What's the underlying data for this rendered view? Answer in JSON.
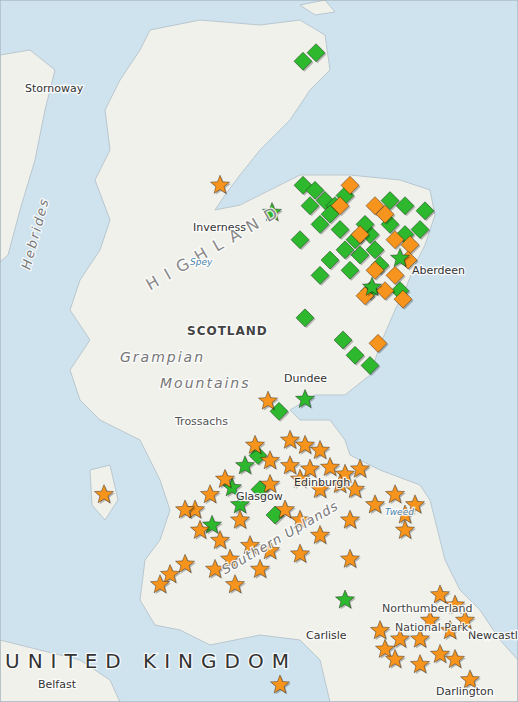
{
  "chart_data": {
    "type": "scatter",
    "tick_labels": false,
    "grid": false,
    "xlim": [
      -6.1,
      -0.92
    ],
    "ylim": [
      54.62,
      58.75
    ],
    "series": [
      {
        "color": "#2eb82e",
        "marker": "diamond",
        "points": [
          [
            -2.94,
            58.44
          ],
          [
            -3.07,
            58.39
          ],
          [
            -3.07,
            57.66
          ],
          [
            -2.95,
            57.63
          ],
          [
            -2.85,
            57.57
          ],
          [
            -2.75,
            57.54
          ],
          [
            -2.65,
            57.6
          ],
          [
            -3.0,
            57.54
          ],
          [
            -2.8,
            57.49
          ],
          [
            -2.9,
            57.43
          ],
          [
            -2.7,
            57.4
          ],
          [
            -3.1,
            57.34
          ],
          [
            -2.55,
            57.34
          ],
          [
            -2.4,
            57.37
          ],
          [
            -2.2,
            57.57
          ],
          [
            -2.05,
            57.54
          ],
          [
            -1.85,
            57.51
          ],
          [
            -2.2,
            57.43
          ],
          [
            -2.05,
            57.37
          ],
          [
            -2.35,
            57.28
          ],
          [
            -2.5,
            57.25
          ],
          [
            -2.3,
            57.19
          ],
          [
            -2.65,
            57.28
          ],
          [
            -2.8,
            57.22
          ],
          [
            -2.9,
            57.13
          ],
          [
            -2.6,
            57.16
          ],
          [
            -2.4,
            57.04
          ],
          [
            -2.1,
            57.04
          ],
          [
            -1.9,
            57.4
          ],
          [
            -2.45,
            57.43
          ],
          [
            -3.05,
            56.88
          ],
          [
            -2.67,
            56.75
          ],
          [
            -2.55,
            56.66
          ],
          [
            -2.4,
            56.6
          ],
          [
            -3.31,
            56.33
          ],
          [
            -3.52,
            56.07
          ],
          [
            -3.35,
            55.72
          ],
          [
            -3.5,
            55.87
          ]
        ]
      },
      {
        "color": "#f7941d",
        "marker": "diamond",
        "points": [
          [
            -2.6,
            57.66
          ],
          [
            -2.35,
            57.54
          ],
          [
            -2.25,
            57.49
          ],
          [
            -2.5,
            57.37
          ],
          [
            -2.15,
            57.34
          ],
          [
            -2.0,
            57.31
          ],
          [
            -2.35,
            57.16
          ],
          [
            -2.15,
            57.13
          ],
          [
            -2.25,
            57.04
          ],
          [
            -2.07,
            56.99
          ],
          [
            -2.45,
            57.01
          ],
          [
            -2.32,
            56.73
          ],
          [
            -2.7,
            57.54
          ],
          [
            -2.02,
            57.22
          ]
        ]
      },
      {
        "color": "#2eb82e",
        "marker": "star",
        "points": [
          [
            -3.38,
            57.5
          ],
          [
            -3.05,
            56.4
          ],
          [
            -2.38,
            57.06
          ],
          [
            -2.1,
            57.23
          ],
          [
            -3.65,
            56.01
          ],
          [
            -3.78,
            55.88
          ],
          [
            -3.98,
            55.66
          ],
          [
            -2.65,
            55.22
          ],
          [
            -3.7,
            55.78
          ]
        ]
      },
      {
        "color": "#f7941d",
        "marker": "star",
        "points": [
          [
            -3.9,
            57.66
          ],
          [
            -3.42,
            56.39
          ],
          [
            -5.06,
            55.84
          ],
          [
            -3.2,
            56.16
          ],
          [
            -3.05,
            56.13
          ],
          [
            -2.9,
            56.1
          ],
          [
            -3.55,
            56.13
          ],
          [
            -3.4,
            56.04
          ],
          [
            -3.2,
            56.01
          ],
          [
            -3.0,
            55.99
          ],
          [
            -2.8,
            56.0
          ],
          [
            -2.65,
            55.96
          ],
          [
            -2.5,
            55.99
          ],
          [
            -2.55,
            55.87
          ],
          [
            -3.1,
            55.93
          ],
          [
            -2.9,
            55.87
          ],
          [
            -2.7,
            55.9
          ],
          [
            -3.4,
            55.9
          ],
          [
            -3.85,
            55.93
          ],
          [
            -4.0,
            55.84
          ],
          [
            -4.15,
            55.75
          ],
          [
            -4.1,
            55.63
          ],
          [
            -3.9,
            55.57
          ],
          [
            -3.7,
            55.69
          ],
          [
            -3.25,
            55.75
          ],
          [
            -3.1,
            55.69
          ],
          [
            -3.6,
            55.54
          ],
          [
            -3.8,
            55.46
          ],
          [
            -3.95,
            55.4
          ],
          [
            -4.25,
            55.43
          ],
          [
            -4.4,
            55.37
          ],
          [
            -4.5,
            55.31
          ],
          [
            -3.75,
            55.31
          ],
          [
            -3.5,
            55.4
          ],
          [
            -3.4,
            55.51
          ],
          [
            -3.1,
            55.49
          ],
          [
            -2.9,
            55.6
          ],
          [
            -2.6,
            55.69
          ],
          [
            -2.35,
            55.78
          ],
          [
            -2.15,
            55.84
          ],
          [
            -2.05,
            55.72
          ],
          [
            -1.95,
            55.78
          ],
          [
            -2.6,
            55.46
          ],
          [
            -2.05,
            55.63
          ],
          [
            -1.7,
            55.25
          ],
          [
            -1.55,
            55.19
          ],
          [
            -1.45,
            55.1
          ],
          [
            -1.6,
            55.04
          ],
          [
            -1.8,
            55.1
          ],
          [
            -1.9,
            54.99
          ],
          [
            -2.1,
            54.99
          ],
          [
            -2.25,
            54.93
          ],
          [
            -2.3,
            55.04
          ],
          [
            -2.15,
            54.87
          ],
          [
            -1.9,
            54.84
          ],
          [
            -1.7,
            54.9
          ],
          [
            -1.55,
            54.87
          ],
          [
            -1.4,
            54.75
          ],
          [
            -3.3,
            54.72
          ],
          [
            -4.25,
            55.75
          ]
        ]
      }
    ],
    "annotations": [
      {
        "text": "Stornoway",
        "x": -5.85,
        "y": 58.21
      },
      {
        "text": "Inverness",
        "x": -4.17,
        "y": 57.39
      },
      {
        "text": "Aberdeen",
        "x": -1.98,
        "y": 57.14
      },
      {
        "text": "Dundee",
        "x": -3.26,
        "y": 56.5
      },
      {
        "text": "Glasgow",
        "x": -3.74,
        "y": 55.81
      },
      {
        "text": "Edinburgh",
        "x": -3.16,
        "y": 55.89
      },
      {
        "text": "Carlisle",
        "x": -3.04,
        "y": 54.99
      },
      {
        "text": "Newcastle",
        "x": -1.42,
        "y": 54.99
      },
      {
        "text": "Belfast",
        "x": -5.72,
        "y": 54.7
      },
      {
        "text": "Darlington",
        "x": -1.74,
        "y": 54.66
      },
      {
        "text": "Trossachs",
        "x": -4.35,
        "y": 56.25
      },
      {
        "text": "SCOTLAND",
        "x": -4.23,
        "y": 56.78
      },
      {
        "text": "HIGHLAND",
        "x": -4.6,
        "y": 57.04
      },
      {
        "text": "Grampian",
        "x": -4.9,
        "y": 56.62
      },
      {
        "text": "Mountains",
        "x": -4.5,
        "y": 56.47
      },
      {
        "text": "Hebrides",
        "x": -5.8,
        "y": 57.16
      },
      {
        "text": "Southern Uplands",
        "x": -3.85,
        "y": 55.37
      },
      {
        "text": "Northumberland",
        "x": -2.28,
        "y": 55.15
      },
      {
        "text": "National Park",
        "x": -2.15,
        "y": 55.04
      },
      {
        "text": "UNITED KINGDOM",
        "x": -6.05,
        "y": 54.82
      },
      {
        "text": "Spey",
        "x": -4.2,
        "y": 57.19
      },
      {
        "text": "Tweed",
        "x": -2.25,
        "y": 55.72
      }
    ]
  }
}
